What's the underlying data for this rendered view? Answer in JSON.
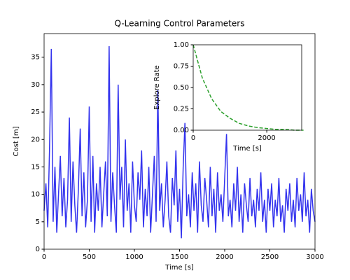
{
  "chart_data": [
    {
      "type": "line",
      "title": "Q-Learning Control Parameters",
      "x_label": "Time [s]",
      "y_label": "Cost [m]",
      "x": [
        0,
        20,
        40,
        60,
        80,
        100,
        120,
        140,
        160,
        180,
        200,
        220,
        240,
        260,
        280,
        300,
        320,
        340,
        360,
        380,
        400,
        420,
        440,
        460,
        480,
        500,
        520,
        540,
        560,
        580,
        600,
        620,
        640,
        660,
        680,
        700,
        720,
        740,
        760,
        780,
        800,
        820,
        840,
        860,
        880,
        900,
        920,
        940,
        960,
        980,
        1000,
        1020,
        1040,
        1060,
        1080,
        1100,
        1120,
        1140,
        1160,
        1180,
        1200,
        1220,
        1240,
        1260,
        1280,
        1300,
        1320,
        1340,
        1360,
        1380,
        1400,
        1420,
        1440,
        1460,
        1480,
        1500,
        1520,
        1540,
        1560,
        1580,
        1600,
        1620,
        1640,
        1660,
        1680,
        1700,
        1720,
        1740,
        1760,
        1780,
        1800,
        1820,
        1840,
        1860,
        1880,
        1900,
        1920,
        1940,
        1960,
        1980,
        2000,
        2020,
        2040,
        2060,
        2080,
        2100,
        2120,
        2140,
        2160,
        2180,
        2200,
        2220,
        2240,
        2260,
        2280,
        2300,
        2320,
        2340,
        2360,
        2380,
        2400,
        2420,
        2440,
        2460,
        2480,
        2500,
        2520,
        2540,
        2560,
        2580,
        2600,
        2620,
        2640,
        2660,
        2680,
        2700,
        2720,
        2740,
        2760,
        2780,
        2800,
        2820,
        2840,
        2860,
        2880,
        2900,
        2920,
        2940,
        2960,
        2980,
        3000
      ],
      "series": [
        {
          "color": "#3333ee",
          "values": [
            7,
            12,
            4,
            18,
            36.5,
            5,
            15,
            3,
            10,
            17,
            6,
            13,
            4,
            9,
            24,
            5,
            16,
            8,
            3,
            11,
            22,
            6,
            14,
            4,
            9,
            26,
            5,
            17,
            3,
            12,
            7,
            15,
            4,
            10,
            16,
            6,
            37,
            5,
            14,
            8,
            3,
            30,
            9,
            15,
            4,
            20,
            7,
            12,
            3,
            16,
            8,
            5,
            14,
            9,
            18,
            4,
            11,
            6,
            15,
            3,
            10,
            17,
            5,
            29,
            7,
            12,
            4,
            9,
            16,
            6,
            3,
            13,
            8,
            18,
            5,
            11,
            2,
            15,
            23,
            6,
            10,
            4,
            14,
            7,
            12,
            3,
            16,
            8,
            5,
            13,
            9,
            4,
            15,
            6,
            11,
            3,
            14,
            7,
            10,
            5,
            13,
            21,
            6,
            9,
            4,
            12,
            7,
            15,
            5,
            10,
            3,
            12,
            8,
            5,
            13,
            6,
            9,
            4,
            11,
            7,
            14,
            5,
            9,
            3,
            11,
            7,
            12,
            4,
            9,
            6,
            13,
            5,
            8,
            3,
            11,
            7,
            12,
            5,
            9,
            4,
            13,
            7,
            10,
            5,
            14,
            6,
            9,
            3,
            11,
            7,
            5
          ]
        }
      ],
      "xlim": [
        0,
        3000
      ],
      "ylim": [
        0,
        39.3
      ],
      "xticks": [
        0,
        500,
        1000,
        1500,
        2000,
        2500,
        3000
      ],
      "yticks": [
        0,
        5,
        10,
        15,
        20,
        25,
        30,
        35
      ]
    },
    {
      "type": "line",
      "x_label": "Time [s]",
      "y_label": "Explore Rate",
      "x": [
        0,
        250,
        500,
        750,
        1000,
        1250,
        1500,
        1750,
        2000,
        2250,
        2500,
        2750,
        3000
      ],
      "series": [
        {
          "color": "#2ca02c",
          "dashed": true,
          "values": [
            1.0,
            0.61,
            0.37,
            0.22,
            0.14,
            0.08,
            0.05,
            0.03,
            0.02,
            0.01,
            0.01,
            0.0,
            0.0
          ]
        }
      ],
      "xlim": [
        0,
        2950
      ],
      "ylim": [
        0,
        1
      ],
      "xticks": [
        0,
        2000
      ],
      "yticks": [
        {
          "value": 0,
          "label": "0.00"
        },
        {
          "value": 0.25,
          "label": "0.25"
        },
        {
          "value": 0.5,
          "label": "0.50"
        },
        {
          "value": 0.75,
          "label": "0.75"
        },
        {
          "value": 1,
          "label": "1.00"
        }
      ]
    }
  ]
}
